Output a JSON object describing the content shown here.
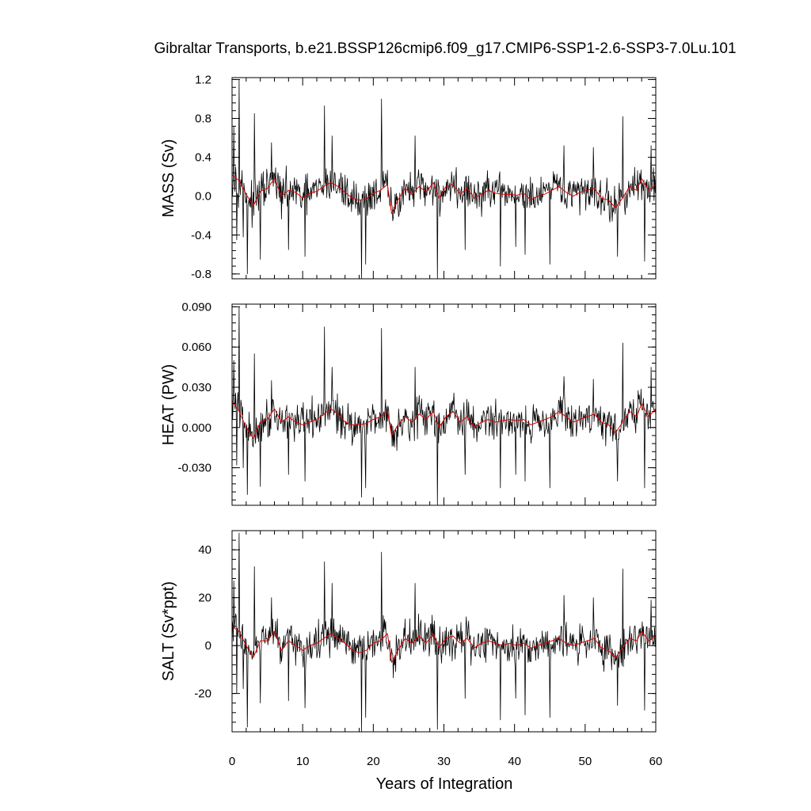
{
  "chart_data": {
    "type": "line",
    "title": "Gibraltar Transports, b.e21.BSSP126cmip6.f09_g17.CMIP6-SSP1-2.6-SSP3-7.0Lu.101",
    "xlabel": "Years of Integration",
    "xlim": [
      0,
      60
    ],
    "x_ticks": [
      "0",
      "10",
      "20",
      "30",
      "40",
      "50",
      "60"
    ],
    "colors": {
      "raw": "#000000",
      "smoothed": "#e00000"
    },
    "panels": [
      {
        "id": "mass",
        "ylabel": "MASS (Sv)",
        "ylim": [
          -0.85,
          1.22
        ],
        "y_ticks": [
          "-0.8",
          "-0.4",
          "0.0",
          "0.4",
          "0.8",
          "1.2"
        ],
        "spikes": [
          [
            0.25,
            0.72
          ],
          [
            0.7,
            -0.45
          ],
          [
            1.0,
            1.2
          ],
          [
            1.6,
            -0.42
          ],
          [
            2.2,
            -0.8
          ],
          [
            3.2,
            0.85
          ],
          [
            4.0,
            -0.65
          ],
          [
            5.6,
            0.55
          ],
          [
            8.0,
            -0.55
          ],
          [
            10.3,
            -0.62
          ],
          [
            13.1,
            0.93
          ],
          [
            14.2,
            0.62
          ],
          [
            18.3,
            -0.85
          ],
          [
            18.9,
            -0.7
          ],
          [
            21.2,
            1.0
          ],
          [
            25.9,
            0.62
          ],
          [
            29.1,
            -0.85
          ],
          [
            33.0,
            -0.55
          ],
          [
            38.0,
            -0.72
          ],
          [
            40.2,
            -0.52
          ],
          [
            41.5,
            -0.6
          ],
          [
            45.0,
            -0.7
          ],
          [
            47.0,
            0.52
          ],
          [
            51.2,
            0.5
          ],
          [
            54.6,
            -0.62
          ],
          [
            55.3,
            0.82
          ],
          [
            58.4,
            -0.67
          ],
          [
            59.3,
            0.52
          ]
        ],
        "smoothed": [
          [
            0.0,
            0.22
          ],
          [
            1.0,
            0.16
          ],
          [
            2.0,
            0.02
          ],
          [
            3.0,
            -0.1
          ],
          [
            4.0,
            0.05
          ],
          [
            5.0,
            0.08
          ],
          [
            6.0,
            0.18
          ],
          [
            7.0,
            0.0
          ],
          [
            8.0,
            0.06
          ],
          [
            9.0,
            0.04
          ],
          [
            10.0,
            -0.02
          ],
          [
            11.0,
            0.03
          ],
          [
            12.0,
            0.05
          ],
          [
            13.0,
            0.1
          ],
          [
            14.0,
            0.14
          ],
          [
            15.0,
            0.1
          ],
          [
            16.0,
            0.04
          ],
          [
            17.0,
            -0.02
          ],
          [
            18.0,
            -0.04
          ],
          [
            19.0,
            -0.03
          ],
          [
            20.0,
            0.03
          ],
          [
            21.0,
            0.06
          ],
          [
            22.0,
            0.12
          ],
          [
            22.6,
            -0.18
          ],
          [
            23.5,
            -0.04
          ],
          [
            24.5,
            0.08
          ],
          [
            25.5,
            0.02
          ],
          [
            26.5,
            0.1
          ],
          [
            27.5,
            0.04
          ],
          [
            28.5,
            0.14
          ],
          [
            29.3,
            -0.02
          ],
          [
            30.3,
            0.1
          ],
          [
            31.3,
            0.12
          ],
          [
            32.3,
            0.02
          ],
          [
            33.3,
            0.08
          ],
          [
            34.3,
            -0.02
          ],
          [
            35.3,
            0.02
          ],
          [
            36.3,
            0.06
          ],
          [
            37.3,
            0.03
          ],
          [
            38.3,
            0.02
          ],
          [
            39.3,
            0.02
          ],
          [
            40.3,
            0.01
          ],
          [
            41.3,
            0.03
          ],
          [
            42.3,
            -0.04
          ],
          [
            43.3,
            0.0
          ],
          [
            44.3,
            0.02
          ],
          [
            45.3,
            0.06
          ],
          [
            46.3,
            0.1
          ],
          [
            47.3,
            0.04
          ],
          [
            48.3,
            0.0
          ],
          [
            49.3,
            0.04
          ],
          [
            50.3,
            0.06
          ],
          [
            51.3,
            0.08
          ],
          [
            52.3,
            -0.02
          ],
          [
            53.3,
            -0.04
          ],
          [
            54.3,
            -0.12
          ],
          [
            55.3,
            -0.02
          ],
          [
            56.3,
            0.1
          ],
          [
            57.3,
            0.06
          ],
          [
            58.0,
            0.18
          ],
          [
            59.0,
            0.06
          ],
          [
            60.0,
            0.12
          ]
        ]
      },
      {
        "id": "heat",
        "ylabel": "HEAT (PW)",
        "ylim": [
          -0.058,
          0.092
        ],
        "y_ticks": [
          "-0.030",
          "0.000",
          "0.030",
          "0.060",
          "0.090"
        ],
        "spikes": [
          [
            0.25,
            0.05
          ],
          [
            0.7,
            -0.028
          ],
          [
            1.0,
            0.09
          ],
          [
            1.6,
            -0.03
          ],
          [
            2.2,
            -0.05
          ],
          [
            3.2,
            0.055
          ],
          [
            4.0,
            -0.044
          ],
          [
            5.6,
            0.035
          ],
          [
            8.0,
            -0.035
          ],
          [
            10.3,
            -0.04
          ],
          [
            13.1,
            0.075
          ],
          [
            14.2,
            0.045
          ],
          [
            18.3,
            -0.052
          ],
          [
            18.9,
            -0.045
          ],
          [
            21.2,
            0.074
          ],
          [
            25.9,
            0.045
          ],
          [
            29.1,
            -0.058
          ],
          [
            33.0,
            -0.035
          ],
          [
            38.0,
            -0.045
          ],
          [
            40.2,
            -0.035
          ],
          [
            41.5,
            -0.04
          ],
          [
            45.0,
            -0.045
          ],
          [
            47.0,
            0.038
          ],
          [
            51.2,
            0.036
          ],
          [
            54.6,
            -0.04
          ],
          [
            55.3,
            0.063
          ],
          [
            58.4,
            -0.045
          ],
          [
            59.3,
            0.045
          ]
        ],
        "smoothed": [
          [
            0.0,
            0.02
          ],
          [
            1.0,
            0.012
          ],
          [
            2.0,
            0.0
          ],
          [
            3.0,
            -0.008
          ],
          [
            4.0,
            0.004
          ],
          [
            5.0,
            0.006
          ],
          [
            6.0,
            0.014
          ],
          [
            7.0,
            0.004
          ],
          [
            8.0,
            0.008
          ],
          [
            9.0,
            0.004
          ],
          [
            10.0,
            0.002
          ],
          [
            11.0,
            0.004
          ],
          [
            12.0,
            0.006
          ],
          [
            13.0,
            0.01
          ],
          [
            14.0,
            0.014
          ],
          [
            15.0,
            0.01
          ],
          [
            16.0,
            0.004
          ],
          [
            17.0,
            0.002
          ],
          [
            18.0,
            0.002
          ],
          [
            19.0,
            0.003
          ],
          [
            20.0,
            0.006
          ],
          [
            21.0,
            0.008
          ],
          [
            22.0,
            0.012
          ],
          [
            22.6,
            -0.006
          ],
          [
            23.5,
            0.002
          ],
          [
            24.5,
            0.008
          ],
          [
            25.5,
            0.004
          ],
          [
            26.5,
            0.01
          ],
          [
            27.5,
            0.006
          ],
          [
            28.5,
            0.012
          ],
          [
            29.3,
            0.0
          ],
          [
            30.3,
            0.008
          ],
          [
            31.3,
            0.012
          ],
          [
            32.3,
            0.004
          ],
          [
            33.3,
            0.008
          ],
          [
            34.3,
            0.0
          ],
          [
            35.3,
            0.004
          ],
          [
            36.3,
            0.006
          ],
          [
            37.3,
            0.004
          ],
          [
            38.3,
            0.005
          ],
          [
            39.3,
            0.006
          ],
          [
            40.3,
            0.005
          ],
          [
            41.3,
            0.006
          ],
          [
            42.3,
            0.002
          ],
          [
            43.3,
            0.004
          ],
          [
            44.3,
            0.006
          ],
          [
            45.3,
            0.008
          ],
          [
            46.3,
            0.012
          ],
          [
            47.3,
            0.008
          ],
          [
            48.3,
            0.004
          ],
          [
            49.3,
            0.006
          ],
          [
            50.3,
            0.008
          ],
          [
            51.3,
            0.01
          ],
          [
            52.3,
            0.004
          ],
          [
            53.3,
            0.002
          ],
          [
            54.3,
            -0.004
          ],
          [
            55.3,
            0.004
          ],
          [
            56.3,
            0.012
          ],
          [
            57.3,
            0.008
          ],
          [
            58.0,
            0.018
          ],
          [
            59.0,
            0.008
          ],
          [
            60.0,
            0.014
          ]
        ]
      },
      {
        "id": "salt",
        "ylabel": "SALT (Sv*ppt)",
        "ylim": [
          -36,
          48
        ],
        "y_ticks": [
          "-20",
          "0",
          "20",
          "40"
        ],
        "spikes": [
          [
            0.25,
            27
          ],
          [
            0.7,
            -20
          ],
          [
            1.0,
            47
          ],
          [
            1.6,
            -18
          ],
          [
            2.2,
            -34
          ],
          [
            3.2,
            33
          ],
          [
            4.0,
            -24
          ],
          [
            5.6,
            20
          ],
          [
            8.0,
            -23
          ],
          [
            10.3,
            -26
          ],
          [
            13.1,
            35
          ],
          [
            14.2,
            26
          ],
          [
            18.3,
            -36
          ],
          [
            18.9,
            -30
          ],
          [
            21.2,
            39
          ],
          [
            25.9,
            26
          ],
          [
            29.1,
            -35
          ],
          [
            33.0,
            -22
          ],
          [
            38.0,
            -31
          ],
          [
            40.2,
            -22
          ],
          [
            41.5,
            -29
          ],
          [
            45.0,
            -30
          ],
          [
            47.0,
            21
          ],
          [
            51.2,
            20
          ],
          [
            54.6,
            -25
          ],
          [
            55.3,
            32
          ],
          [
            58.4,
            -27
          ],
          [
            59.3,
            19
          ]
        ],
        "smoothed": [
          [
            0.0,
            8
          ],
          [
            1.0,
            6
          ],
          [
            2.0,
            0
          ],
          [
            3.0,
            -5
          ],
          [
            4.0,
            2
          ],
          [
            5.0,
            2
          ],
          [
            6.0,
            6
          ],
          [
            7.0,
            -2
          ],
          [
            8.0,
            2
          ],
          [
            9.0,
            0
          ],
          [
            10.0,
            -2
          ],
          [
            11.0,
            0
          ],
          [
            12.0,
            1
          ],
          [
            13.0,
            3
          ],
          [
            14.0,
            5
          ],
          [
            15.0,
            3
          ],
          [
            16.0,
            1
          ],
          [
            17.0,
            -2
          ],
          [
            18.0,
            -3
          ],
          [
            19.0,
            -2
          ],
          [
            20.0,
            1
          ],
          [
            21.0,
            2
          ],
          [
            22.0,
            5
          ],
          [
            22.6,
            -7
          ],
          [
            23.5,
            -2
          ],
          [
            24.5,
            3
          ],
          [
            25.5,
            1
          ],
          [
            26.5,
            4
          ],
          [
            27.5,
            1
          ],
          [
            28.5,
            5
          ],
          [
            29.3,
            -1
          ],
          [
            30.3,
            3
          ],
          [
            31.3,
            4
          ],
          [
            32.3,
            1
          ],
          [
            33.3,
            3
          ],
          [
            34.3,
            -1
          ],
          [
            35.3,
            1
          ],
          [
            36.3,
            2
          ],
          [
            37.3,
            1
          ],
          [
            38.3,
            0
          ],
          [
            39.3,
            1
          ],
          [
            40.3,
            0
          ],
          [
            41.3,
            1
          ],
          [
            42.3,
            -1
          ],
          [
            43.3,
            0
          ],
          [
            44.3,
            1
          ],
          [
            45.3,
            2
          ],
          [
            46.3,
            3
          ],
          [
            47.3,
            1
          ],
          [
            48.3,
            0
          ],
          [
            49.3,
            1
          ],
          [
            50.3,
            2
          ],
          [
            51.3,
            3
          ],
          [
            52.3,
            -1
          ],
          [
            53.3,
            -2
          ],
          [
            54.3,
            -5
          ],
          [
            55.3,
            -1
          ],
          [
            56.3,
            3
          ],
          [
            57.3,
            2
          ],
          [
            58.0,
            6
          ],
          [
            59.0,
            2
          ],
          [
            60.0,
            4
          ]
        ]
      }
    ]
  }
}
